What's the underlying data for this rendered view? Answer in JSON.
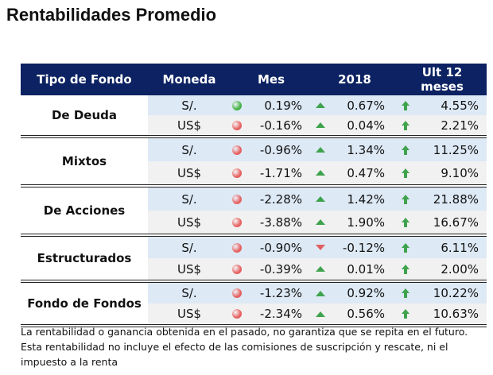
{
  "title": "Rentabilidades Promedio",
  "headers": {
    "tipo": "Tipo de Fondo",
    "moneda": "Moneda",
    "mes": "Mes",
    "y2018": "2018",
    "ult12": "Ult 12 meses"
  },
  "colors": {
    "header_bg": "#0c2262",
    "green": "#45b245",
    "red": "#e56060"
  },
  "groups": [
    {
      "name": "De Deuda",
      "rows": [
        {
          "cur": "S/.",
          "mes_icon": "green-circle",
          "mes": "0.19%",
          "y_icon": "up-triangle",
          "y2018": "0.67%",
          "u_icon": "up-arrow",
          "ult12": "4.55%"
        },
        {
          "cur": "US$",
          "mes_icon": "red-circle",
          "mes": "-0.16%",
          "y_icon": "up-triangle",
          "y2018": "0.04%",
          "u_icon": "up-arrow",
          "ult12": "2.21%"
        }
      ]
    },
    {
      "name": "Mixtos",
      "rows": [
        {
          "cur": "S/.",
          "mes_icon": "red-circle",
          "mes": "-0.96%",
          "y_icon": "up-triangle",
          "y2018": "1.34%",
          "u_icon": "up-arrow",
          "ult12": "11.25%"
        },
        {
          "cur": "US$",
          "mes_icon": "red-circle",
          "mes": "-1.71%",
          "y_icon": "up-triangle",
          "y2018": "0.47%",
          "u_icon": "up-arrow",
          "ult12": "9.10%"
        }
      ]
    },
    {
      "name": "De Acciones",
      "rows": [
        {
          "cur": "S/.",
          "mes_icon": "red-circle",
          "mes": "-2.28%",
          "y_icon": "up-triangle",
          "y2018": "1.42%",
          "u_icon": "up-arrow",
          "ult12": "21.88%"
        },
        {
          "cur": "US$",
          "mes_icon": "red-circle",
          "mes": "-3.88%",
          "y_icon": "up-triangle",
          "y2018": "1.90%",
          "u_icon": "up-arrow",
          "ult12": "16.67%"
        }
      ]
    },
    {
      "name": "Estructurados",
      "rows": [
        {
          "cur": "S/.",
          "mes_icon": "red-circle",
          "mes": "-0.90%",
          "y_icon": "down-triangle",
          "y2018": "-0.12%",
          "u_icon": "up-arrow",
          "ult12": "6.11%"
        },
        {
          "cur": "US$",
          "mes_icon": "red-circle",
          "mes": "-0.39%",
          "y_icon": "up-triangle",
          "y2018": "0.01%",
          "u_icon": "up-arrow",
          "ult12": "2.00%"
        }
      ]
    },
    {
      "name": "Fondo de Fondos",
      "rows": [
        {
          "cur": "S/.",
          "mes_icon": "red-circle",
          "mes": "-1.23%",
          "y_icon": "up-triangle",
          "y2018": "0.92%",
          "u_icon": "up-arrow",
          "ult12": "10.22%"
        },
        {
          "cur": "US$",
          "mes_icon": "red-circle",
          "mes": "-2.34%",
          "y_icon": "up-triangle",
          "y2018": "0.56%",
          "u_icon": "up-arrow",
          "ult12": "10.63%"
        }
      ]
    }
  ],
  "footer": "La rentabilidad o ganancia obtenida en el pasado, no garantiza que se repita en el futuro. Esta rentabilidad no incluye el efecto de las comisiones de suscripción y rescate, ni el impuesto a la renta"
}
